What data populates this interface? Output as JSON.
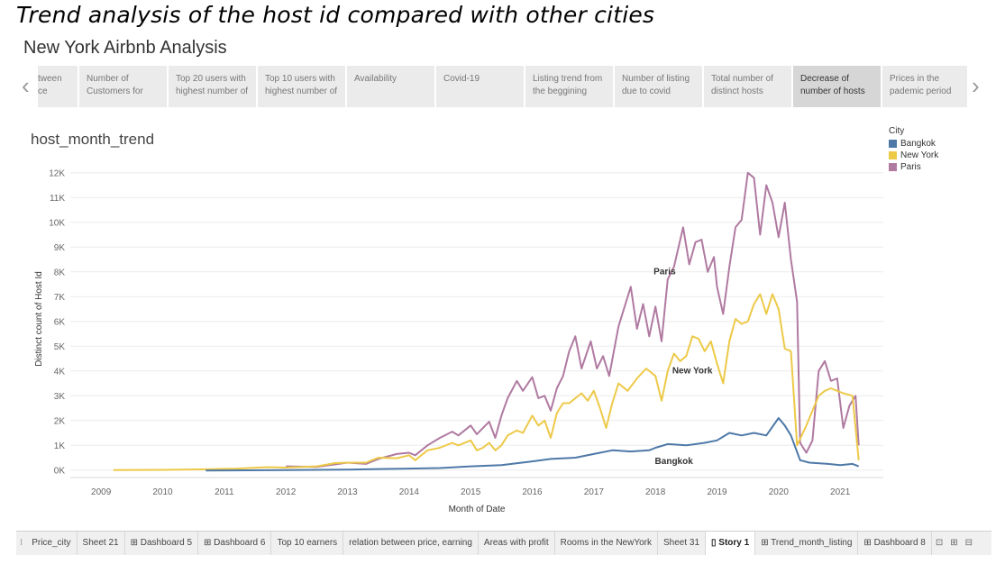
{
  "caption": "Trend analysis of the host id compared with other cities",
  "story": {
    "title": "New York Airbnb Analysis",
    "prev_icon": "‹",
    "next_icon": "›",
    "points": [
      {
        "label": "tween ce"
      },
      {
        "label": "Number of Customers for"
      },
      {
        "label": "Top 20 users with highest number of"
      },
      {
        "label": "Top 10 users with highest number of"
      },
      {
        "label": "Availability"
      },
      {
        "label": "Covid-19"
      },
      {
        "label": "Listing trend from the beggining"
      },
      {
        "label": "Number of listing due to covid"
      },
      {
        "label": "Total number of distinct hosts"
      },
      {
        "label": "Decrease of number of hosts"
      },
      {
        "label": "Prices in the pademic period"
      }
    ],
    "active_point": 9
  },
  "sheet_title": "host_month_trend",
  "legend": {
    "title": "City",
    "items": [
      {
        "name": "Bangkok",
        "color": "#4e79a7"
      },
      {
        "name": "New York",
        "color": "#edc948"
      },
      {
        "name": "Paris",
        "color": "#b07aa1"
      }
    ]
  },
  "chart_data": {
    "type": "line",
    "title": "host_month_trend",
    "xlabel": "Month of Date",
    "ylabel": "Distinct count of Host Id",
    "xlim": [
      2008.5,
      2021.7
    ],
    "ylim": [
      -300,
      12500
    ],
    "x_ticks": [
      2009,
      2010,
      2011,
      2012,
      2013,
      2014,
      2015,
      2016,
      2017,
      2018,
      2019,
      2020,
      2021
    ],
    "x_tick_labels": [
      "2009",
      "2010",
      "2011",
      "2012",
      "2013",
      "2014",
      "2015",
      "2016",
      "2017",
      "2018",
      "2019",
      "2020",
      "2021"
    ],
    "y_ticks": [
      0,
      1000,
      2000,
      3000,
      4000,
      5000,
      6000,
      7000,
      8000,
      9000,
      10000,
      11000,
      12000
    ],
    "y_tick_labels": [
      "0K",
      "1K",
      "2K",
      "3K",
      "4K",
      "5K",
      "6K",
      "7K",
      "8K",
      "9K",
      "10K",
      "11K",
      "12K"
    ],
    "grid": true,
    "legend_position": "top-right",
    "series": [
      {
        "name": "Paris",
        "color": "#b07aa1",
        "label": "Paris",
        "points": [
          [
            2012.0,
            150
          ],
          [
            2012.5,
            130
          ],
          [
            2013.0,
            300
          ],
          [
            2013.3,
            250
          ],
          [
            2013.5,
            450
          ],
          [
            2013.8,
            650
          ],
          [
            2014.0,
            700
          ],
          [
            2014.1,
            600
          ],
          [
            2014.3,
            1000
          ],
          [
            2014.5,
            1300
          ],
          [
            2014.7,
            1550
          ],
          [
            2014.8,
            1400
          ],
          [
            2015.0,
            1800
          ],
          [
            2015.1,
            1450
          ],
          [
            2015.3,
            1950
          ],
          [
            2015.4,
            1300
          ],
          [
            2015.5,
            2200
          ],
          [
            2015.6,
            2900
          ],
          [
            2015.75,
            3600
          ],
          [
            2015.85,
            3200
          ],
          [
            2016.0,
            3750
          ],
          [
            2016.1,
            2900
          ],
          [
            2016.2,
            3000
          ],
          [
            2016.3,
            2400
          ],
          [
            2016.4,
            3300
          ],
          [
            2016.5,
            3800
          ],
          [
            2016.6,
            4800
          ],
          [
            2016.7,
            5400
          ],
          [
            2016.8,
            4100
          ],
          [
            2016.95,
            5200
          ],
          [
            2017.05,
            4100
          ],
          [
            2017.15,
            4600
          ],
          [
            2017.25,
            3800
          ],
          [
            2017.4,
            5800
          ],
          [
            2017.5,
            6600
          ],
          [
            2017.6,
            7400
          ],
          [
            2017.7,
            5700
          ],
          [
            2017.8,
            6700
          ],
          [
            2017.9,
            5400
          ],
          [
            2018.0,
            6600
          ],
          [
            2018.1,
            5200
          ],
          [
            2018.2,
            7700
          ],
          [
            2018.3,
            8200
          ],
          [
            2018.45,
            9800
          ],
          [
            2018.55,
            8300
          ],
          [
            2018.65,
            9200
          ],
          [
            2018.75,
            9300
          ],
          [
            2018.85,
            8000
          ],
          [
            2018.95,
            8600
          ],
          [
            2019.0,
            7400
          ],
          [
            2019.1,
            6300
          ],
          [
            2019.2,
            8200
          ],
          [
            2019.3,
            9800
          ],
          [
            2019.4,
            10100
          ],
          [
            2019.5,
            12000
          ],
          [
            2019.6,
            11800
          ],
          [
            2019.7,
            9500
          ],
          [
            2019.8,
            11500
          ],
          [
            2019.9,
            10800
          ],
          [
            2020.0,
            9400
          ],
          [
            2020.1,
            10800
          ],
          [
            2020.2,
            8500
          ],
          [
            2020.3,
            6800
          ],
          [
            2020.35,
            1100
          ],
          [
            2020.45,
            700
          ],
          [
            2020.55,
            1200
          ],
          [
            2020.65,
            4000
          ],
          [
            2020.75,
            4400
          ],
          [
            2020.85,
            3600
          ],
          [
            2020.95,
            3700
          ],
          [
            2021.05,
            1700
          ],
          [
            2021.15,
            2600
          ],
          [
            2021.25,
            3000
          ],
          [
            2021.3,
            1000
          ]
        ]
      },
      {
        "name": "New York",
        "color": "#edc948",
        "label": "New York",
        "points": [
          [
            2009.2,
            0
          ],
          [
            2010.0,
            10
          ],
          [
            2010.7,
            30
          ],
          [
            2011.2,
            60
          ],
          [
            2011.7,
            120
          ],
          [
            2012.0,
            100
          ],
          [
            2012.5,
            150
          ],
          [
            2012.8,
            280
          ],
          [
            2013.0,
            300
          ],
          [
            2013.3,
            300
          ],
          [
            2013.5,
            500
          ],
          [
            2013.8,
            480
          ],
          [
            2014.0,
            600
          ],
          [
            2014.1,
            400
          ],
          [
            2014.3,
            800
          ],
          [
            2014.5,
            900
          ],
          [
            2014.7,
            1100
          ],
          [
            2014.8,
            1000
          ],
          [
            2015.0,
            1200
          ],
          [
            2015.1,
            800
          ],
          [
            2015.2,
            900
          ],
          [
            2015.3,
            1100
          ],
          [
            2015.4,
            800
          ],
          [
            2015.5,
            1000
          ],
          [
            2015.6,
            1400
          ],
          [
            2015.75,
            1600
          ],
          [
            2015.85,
            1500
          ],
          [
            2016.0,
            2200
          ],
          [
            2016.1,
            1800
          ],
          [
            2016.2,
            2000
          ],
          [
            2016.3,
            1300
          ],
          [
            2016.4,
            2300
          ],
          [
            2016.5,
            2700
          ],
          [
            2016.6,
            2700
          ],
          [
            2016.7,
            2900
          ],
          [
            2016.8,
            3100
          ],
          [
            2016.9,
            2800
          ],
          [
            2017.0,
            3200
          ],
          [
            2017.1,
            2500
          ],
          [
            2017.2,
            1700
          ],
          [
            2017.3,
            2700
          ],
          [
            2017.4,
            3500
          ],
          [
            2017.55,
            3200
          ],
          [
            2017.7,
            3700
          ],
          [
            2017.85,
            4100
          ],
          [
            2018.0,
            3800
          ],
          [
            2018.1,
            2800
          ],
          [
            2018.2,
            4000
          ],
          [
            2018.3,
            4700
          ],
          [
            2018.4,
            4400
          ],
          [
            2018.5,
            4600
          ],
          [
            2018.6,
            5400
          ],
          [
            2018.7,
            5300
          ],
          [
            2018.8,
            4800
          ],
          [
            2018.9,
            5200
          ],
          [
            2019.0,
            4300
          ],
          [
            2019.1,
            3500
          ],
          [
            2019.2,
            5200
          ],
          [
            2019.3,
            6100
          ],
          [
            2019.4,
            5900
          ],
          [
            2019.5,
            6000
          ],
          [
            2019.6,
            6700
          ],
          [
            2019.7,
            7100
          ],
          [
            2019.8,
            6300
          ],
          [
            2019.9,
            7100
          ],
          [
            2020.0,
            6500
          ],
          [
            2020.1,
            4900
          ],
          [
            2020.2,
            4800
          ],
          [
            2020.3,
            1000
          ],
          [
            2020.45,
            1800
          ],
          [
            2020.55,
            2400
          ],
          [
            2020.65,
            3000
          ],
          [
            2020.75,
            3200
          ],
          [
            2020.85,
            3300
          ],
          [
            2020.95,
            3200
          ],
          [
            2021.05,
            3100
          ],
          [
            2021.2,
            3000
          ],
          [
            2021.3,
            400
          ]
        ]
      },
      {
        "name": "Bangkok",
        "color": "#4e79a7",
        "label": "Bangkok",
        "points": [
          [
            2010.7,
            -20
          ],
          [
            2012.0,
            0
          ],
          [
            2013.0,
            20
          ],
          [
            2013.5,
            40
          ],
          [
            2014.0,
            60
          ],
          [
            2014.5,
            80
          ],
          [
            2015.0,
            150
          ],
          [
            2015.5,
            200
          ],
          [
            2016.0,
            350
          ],
          [
            2016.3,
            450
          ],
          [
            2016.7,
            500
          ],
          [
            2017.0,
            650
          ],
          [
            2017.3,
            800
          ],
          [
            2017.6,
            750
          ],
          [
            2017.9,
            800
          ],
          [
            2018.0,
            900
          ],
          [
            2018.2,
            1050
          ],
          [
            2018.5,
            1000
          ],
          [
            2018.8,
            1100
          ],
          [
            2019.0,
            1200
          ],
          [
            2019.2,
            1500
          ],
          [
            2019.4,
            1400
          ],
          [
            2019.6,
            1500
          ],
          [
            2019.8,
            1400
          ],
          [
            2020.0,
            2100
          ],
          [
            2020.1,
            1800
          ],
          [
            2020.2,
            1400
          ],
          [
            2020.35,
            400
          ],
          [
            2020.5,
            300
          ],
          [
            2020.8,
            250
          ],
          [
            2021.0,
            200
          ],
          [
            2021.2,
            250
          ],
          [
            2021.3,
            150
          ]
        ]
      }
    ]
  },
  "sheet_tabs": [
    {
      "label": "Price_city"
    },
    {
      "label": "Sheet 21"
    },
    {
      "label": "⊞ Dashboard 5"
    },
    {
      "label": "⊞ Dashboard 6"
    },
    {
      "label": "Top 10 earners"
    },
    {
      "label": "relation between price, earning"
    },
    {
      "label": "Areas with profit"
    },
    {
      "label": "Rooms in the NewYork"
    },
    {
      "label": "Sheet 31"
    },
    {
      "label": "▯ Story 1"
    },
    {
      "label": "⊞ Trend_month_listing"
    },
    {
      "label": "⊞ Dashboard 8"
    }
  ],
  "active_sheet_tab": 9,
  "sheet_icons": [
    {
      "name": "new-worksheet-icon",
      "glyph": "⊡"
    },
    {
      "name": "new-dashboard-icon",
      "glyph": "⊞"
    },
    {
      "name": "new-story-icon",
      "glyph": "⊟"
    }
  ]
}
